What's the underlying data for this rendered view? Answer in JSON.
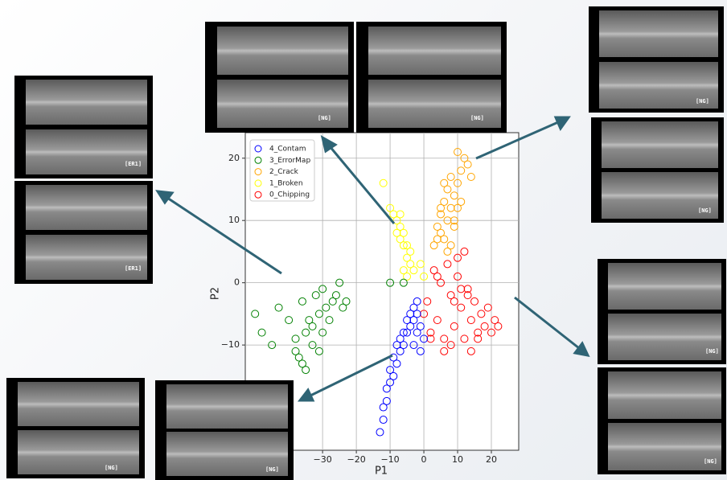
{
  "chart_data": {
    "type": "scatter",
    "xlabel": "P1",
    "ylabel": "P2",
    "xlim": [
      -52.9,
      28.1
    ],
    "ylim": [
      -26.9,
      24.1
    ],
    "xticks": [
      {
        "value": -30,
        "label": "−30"
      },
      {
        "value": -20,
        "label": "−20"
      },
      {
        "value": -10,
        "label": "−10"
      },
      0,
      10,
      20
    ],
    "yticks": [
      {
        "value": -10,
        "label": "−10"
      },
      0,
      10,
      20
    ],
    "grid": true,
    "legend": "upper left",
    "series": [
      {
        "name": "4_Contam",
        "color": "#0000ff",
        "x": [
          -13,
          -12,
          -12,
          -11,
          -11,
          -10,
          -10,
          -9,
          -9,
          -8,
          -8,
          -7,
          -7,
          -6,
          -6,
          -5,
          -5,
          -4,
          -4,
          -3,
          -3,
          -2,
          -2,
          -1,
          0,
          -1,
          -3,
          -2
        ],
        "y": [
          -24,
          -22,
          -20,
          -19,
          -17,
          -16,
          -14,
          -15,
          -12,
          -13,
          -10,
          -11,
          -9,
          -10,
          -8,
          -8,
          -6,
          -7,
          -5,
          -6,
          -4,
          -5,
          -8,
          -7,
          -9,
          -11,
          -10,
          -3
        ]
      },
      {
        "name": "3_ErrorMap",
        "color": "#008000",
        "x": [
          -50,
          -48,
          -45,
          -43,
          -40,
          -38,
          -37,
          -36,
          -35,
          -34,
          -33,
          -33,
          -32,
          -31,
          -30,
          -30,
          -29,
          -28,
          -27,
          -26,
          -25,
          -24,
          -23,
          -35,
          -38,
          -31,
          -10,
          -6,
          -36
        ],
        "y": [
          -5,
          -8,
          -10,
          -4,
          -6,
          -9,
          -12,
          -3,
          -8,
          -6,
          -7,
          -10,
          -2,
          -5,
          -8,
          -1,
          -4,
          -6,
          -3,
          -2,
          0,
          -4,
          -3,
          -14,
          -11,
          -11,
          0,
          0,
          -13
        ]
      },
      {
        "name": "2_Crack",
        "color": "#ffa500",
        "x": [
          3,
          4,
          5,
          5,
          6,
          6,
          7,
          7,
          8,
          8,
          9,
          9,
          10,
          10,
          11,
          11,
          12,
          7,
          8,
          9,
          6,
          10,
          13,
          14,
          4,
          5
        ],
        "y": [
          6,
          9,
          8,
          11,
          13,
          7,
          15,
          10,
          12,
          17,
          14,
          9,
          16,
          12,
          18,
          13,
          20,
          5,
          6,
          10,
          16,
          21,
          19,
          17,
          7,
          12
        ]
      },
      {
        "name": "1_Broken",
        "color": "#ffff00",
        "x": [
          -12,
          -10,
          -9,
          -8,
          -8,
          -7,
          -7,
          -6,
          -6,
          -5,
          -5,
          -4,
          -4,
          -3,
          -5,
          -6,
          -1,
          0,
          -7
        ],
        "y": [
          16,
          12,
          11,
          10,
          8,
          9,
          7,
          8,
          6,
          6,
          4,
          5,
          3,
          2,
          1,
          2,
          3,
          1,
          11
        ]
      },
      {
        "name": "0_Chipping",
        "color": "#ff0000",
        "x": [
          0,
          1,
          2,
          3,
          4,
          5,
          6,
          7,
          8,
          9,
          10,
          11,
          12,
          13,
          14,
          15,
          16,
          17,
          18,
          19,
          20,
          21,
          22,
          10,
          12,
          8,
          14,
          6,
          4,
          9,
          11,
          16,
          2,
          13
        ],
        "y": [
          -5,
          -3,
          -8,
          2,
          -6,
          0,
          -9,
          3,
          -2,
          -7,
          1,
          -4,
          -9,
          -1,
          -6,
          -3,
          -8,
          -5,
          -7,
          -4,
          -8,
          -6,
          -7,
          4,
          5,
          -10,
          -11,
          -11,
          1,
          -3,
          -1,
          -9,
          -9,
          -2
        ]
      }
    ]
  },
  "thumbnail_labels": [
    "[NG]",
    "[NG]",
    "[NG]",
    "[NG]",
    "[ER1]",
    "[ER1]",
    "[NG]",
    "[NG]",
    "[NG]",
    "[NG]"
  ]
}
